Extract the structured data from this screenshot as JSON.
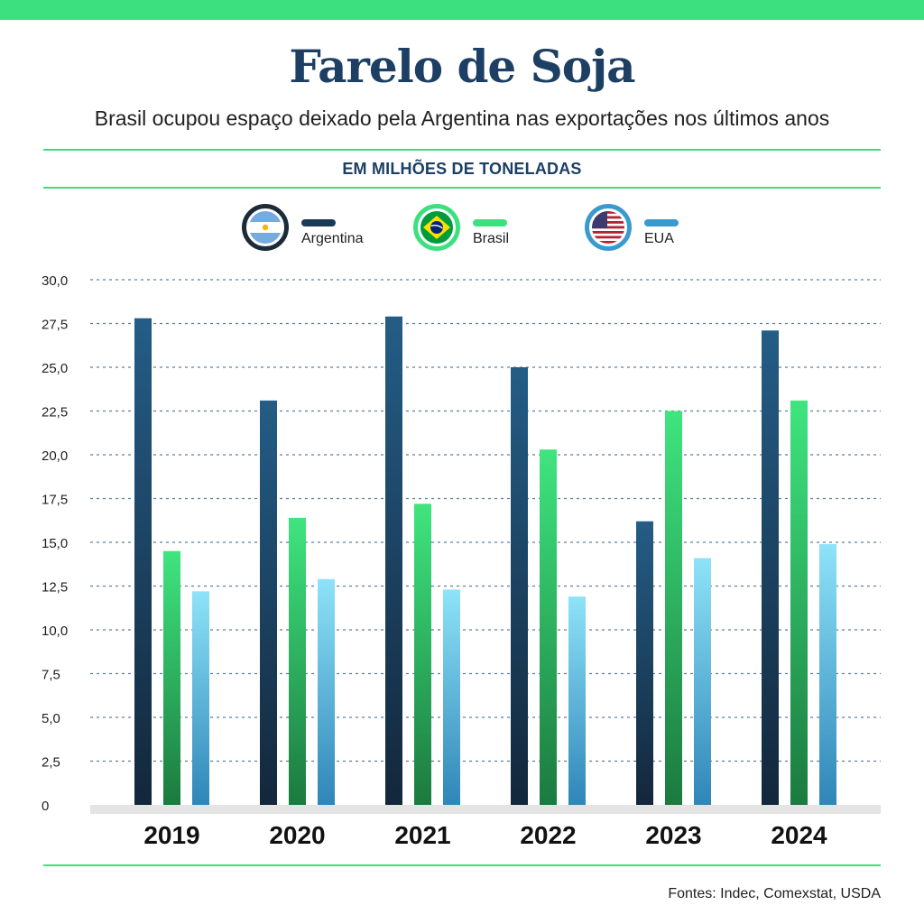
{
  "header": {
    "title": "Farelo de Soja",
    "subtitle": "Brasil ocupou espaço deixado pela Argentina nas exportações nos últimos anos",
    "units": "EM MILHÕES DE TONELADAS"
  },
  "colors": {
    "accent_green": "#3de07f",
    "title_navy": "#1c3f63",
    "argentina": "#1c3a56",
    "brasil": "#3de07f",
    "eua": "#3a9ad0",
    "grid": "#5b7fa0",
    "baseline": "#e4e4e4"
  },
  "legend": [
    {
      "name": "Argentina",
      "icon": "argentina-flag-icon"
    },
    {
      "name": "Brasil",
      "icon": "brazil-flag-icon"
    },
    {
      "name": "EUA",
      "icon": "usa-flag-icon"
    }
  ],
  "chart_data": {
    "type": "bar",
    "title": "Farelo de Soja",
    "ylabel": "EM MILHÕES DE TONELADAS",
    "xlabel": "",
    "ylim": [
      0,
      30
    ],
    "yticks": [
      0,
      2.5,
      5,
      7.5,
      10,
      12.5,
      15,
      17.5,
      20,
      22.5,
      25,
      27.5,
      30
    ],
    "ytick_labels": [
      "0",
      "2,5",
      "5,0",
      "7,5",
      "10,0",
      "12,5",
      "15,0",
      "17,5",
      "20,0",
      "22,5",
      "25,0",
      "27,5",
      "30,0"
    ],
    "grid": true,
    "legend_position": "top-center",
    "categories": [
      "2019",
      "2020",
      "2021",
      "2022",
      "2023",
      "2024"
    ],
    "series": [
      {
        "name": "Argentina",
        "values": [
          27.8,
          23.1,
          27.9,
          25.0,
          16.2,
          27.1
        ]
      },
      {
        "name": "Brasil",
        "values": [
          14.5,
          16.4,
          17.2,
          20.3,
          22.5,
          23.1
        ]
      },
      {
        "name": "EUA",
        "values": [
          12.2,
          12.9,
          12.3,
          11.9,
          14.1,
          14.9
        ]
      }
    ]
  },
  "footer": {
    "source": "Fontes: Indec, Comexstat, USDA"
  }
}
